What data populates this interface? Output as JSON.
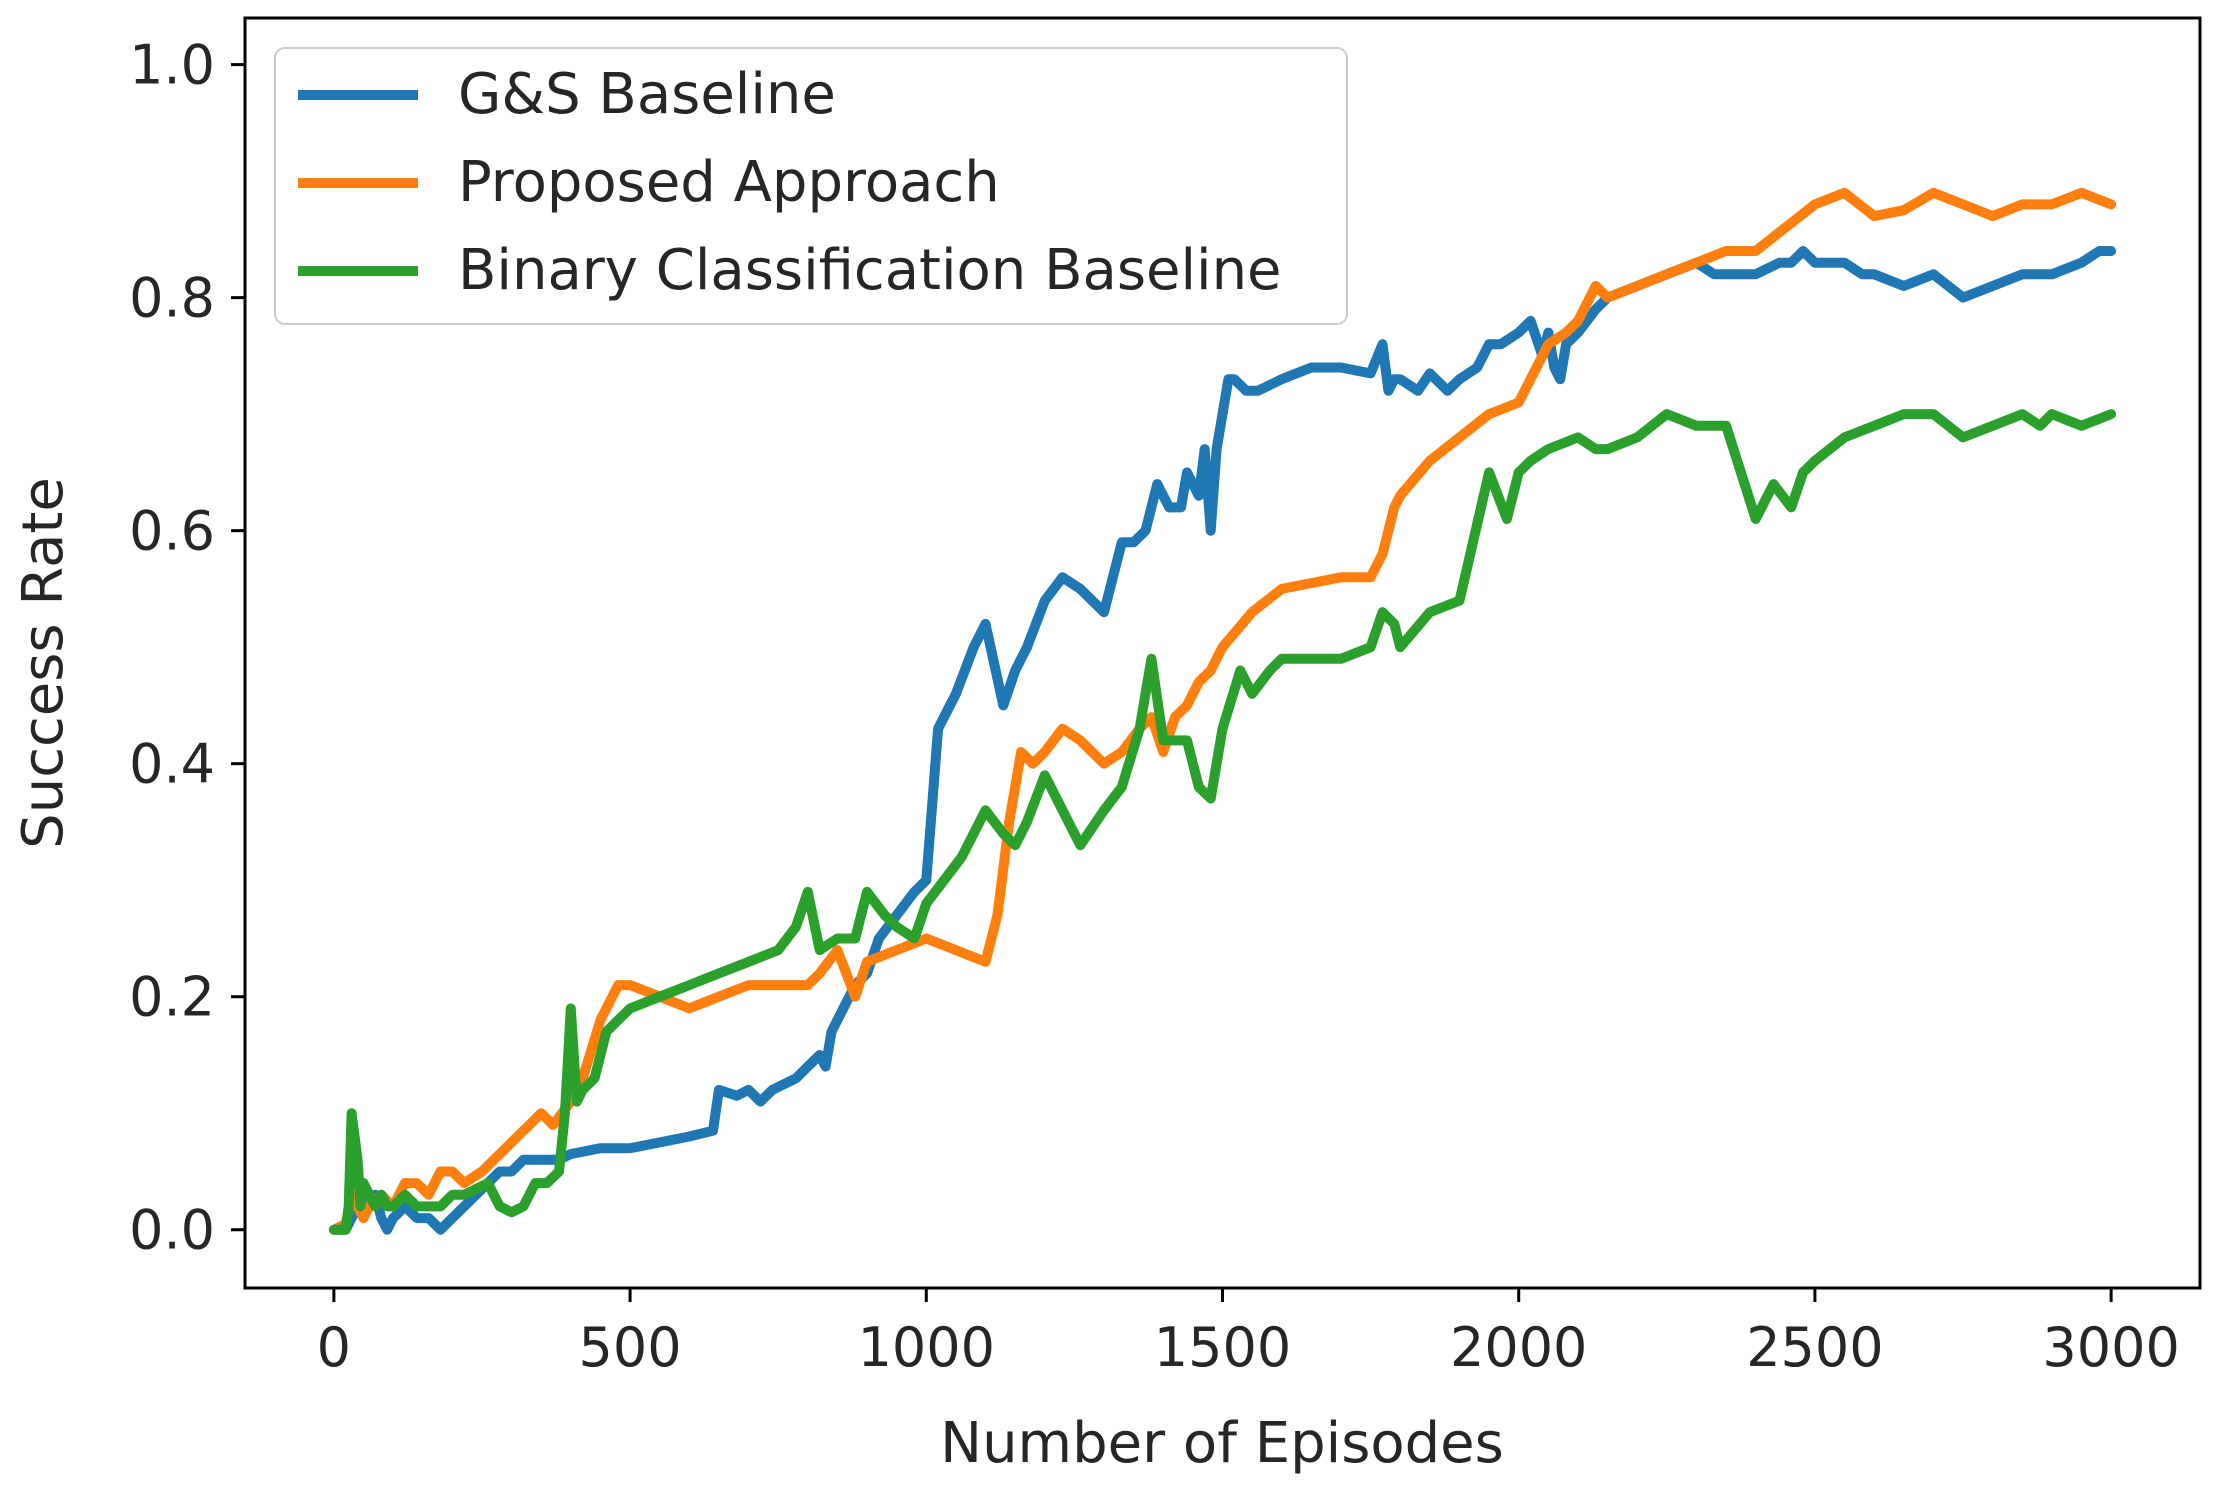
{
  "chart_data": {
    "type": "line",
    "title": "",
    "xlabel": "Number of Episodes",
    "ylabel": "Success Rate",
    "xlim": [
      -150,
      3150
    ],
    "ylim": [
      -0.05,
      1.04
    ],
    "xticks": [
      0,
      500,
      1000,
      1500,
      2000,
      2500,
      3000
    ],
    "xtick_labels": [
      "0",
      "500",
      "1000",
      "1500",
      "2000",
      "2500",
      "3000"
    ],
    "yticks": [
      0.0,
      0.2,
      0.4,
      0.6,
      0.8,
      1.0
    ],
    "ytick_labels": [
      "0.0",
      "0.2",
      "0.4",
      "0.6",
      "0.8",
      "1.0"
    ],
    "grid": false,
    "legend_position": "upper-left",
    "series": [
      {
        "name": "G&S Baseline",
        "color": "#1f77b4",
        "x": [
          0,
          20,
          30,
          40,
          50,
          60,
          70,
          80,
          90,
          100,
          120,
          140,
          160,
          180,
          200,
          220,
          240,
          260,
          280,
          300,
          320,
          340,
          360,
          380,
          400,
          450,
          500,
          550,
          600,
          640,
          650,
          680,
          700,
          720,
          740,
          760,
          780,
          800,
          820,
          830,
          840,
          860,
          880,
          900,
          920,
          950,
          980,
          1000,
          1020,
          1050,
          1080,
          1100,
          1130,
          1150,
          1170,
          1200,
          1230,
          1260,
          1300,
          1330,
          1350,
          1370,
          1390,
          1410,
          1430,
          1440,
          1460,
          1470,
          1480,
          1490,
          1500,
          1510,
          1520,
          1540,
          1560,
          1580,
          1600,
          1650,
          1700,
          1750,
          1770,
          1780,
          1790,
          1800,
          1830,
          1850,
          1880,
          1900,
          1930,
          1950,
          1970,
          2000,
          2020,
          2040,
          2050,
          2060,
          2070,
          2080,
          2100,
          2130,
          2150,
          2200,
          2250,
          2300,
          2330,
          2350,
          2400,
          2440,
          2460,
          2480,
          2500,
          2550,
          2580,
          2600,
          2650,
          2700,
          2750,
          2800,
          2850,
          2900,
          2950,
          2980,
          3000
        ],
        "y": [
          0.0,
          0.0,
          0.01,
          0.02,
          0.03,
          0.02,
          0.03,
          0.01,
          0.0,
          0.01,
          0.02,
          0.01,
          0.01,
          0.0,
          0.01,
          0.02,
          0.03,
          0.04,
          0.05,
          0.05,
          0.06,
          0.06,
          0.06,
          0.06,
          0.065,
          0.07,
          0.07,
          0.075,
          0.08,
          0.085,
          0.12,
          0.115,
          0.12,
          0.11,
          0.12,
          0.125,
          0.13,
          0.14,
          0.15,
          0.14,
          0.17,
          0.19,
          0.21,
          0.22,
          0.25,
          0.27,
          0.29,
          0.3,
          0.43,
          0.46,
          0.5,
          0.52,
          0.45,
          0.48,
          0.5,
          0.54,
          0.56,
          0.55,
          0.53,
          0.59,
          0.59,
          0.6,
          0.64,
          0.62,
          0.62,
          0.65,
          0.63,
          0.67,
          0.6,
          0.67,
          0.7,
          0.73,
          0.73,
          0.72,
          0.72,
          0.725,
          0.73,
          0.74,
          0.74,
          0.735,
          0.76,
          0.72,
          0.73,
          0.73,
          0.72,
          0.735,
          0.72,
          0.73,
          0.74,
          0.76,
          0.76,
          0.77,
          0.78,
          0.75,
          0.77,
          0.74,
          0.73,
          0.76,
          0.77,
          0.79,
          0.8,
          0.81,
          0.82,
          0.83,
          0.82,
          0.82,
          0.82,
          0.83,
          0.83,
          0.84,
          0.83,
          0.83,
          0.82,
          0.82,
          0.81,
          0.82,
          0.8,
          0.81,
          0.82,
          0.82,
          0.83,
          0.84,
          0.84
        ]
      },
      {
        "name": "Proposed Approach",
        "color": "#ff7f0e",
        "x": [
          0,
          20,
          30,
          40,
          50,
          60,
          80,
          100,
          120,
          140,
          160,
          180,
          200,
          220,
          250,
          270,
          290,
          310,
          330,
          350,
          370,
          400,
          420,
          450,
          480,
          500,
          550,
          600,
          650,
          700,
          750,
          800,
          820,
          850,
          880,
          900,
          950,
          1000,
          1050,
          1100,
          1120,
          1140,
          1160,
          1180,
          1200,
          1230,
          1260,
          1300,
          1330,
          1360,
          1380,
          1400,
          1420,
          1440,
          1460,
          1480,
          1500,
          1550,
          1600,
          1650,
          1700,
          1750,
          1770,
          1790,
          1800,
          1850,
          1900,
          1950,
          2000,
          2030,
          2050,
          2080,
          2100,
          2130,
          2150,
          2200,
          2250,
          2300,
          2350,
          2400,
          2450,
          2500,
          2550,
          2600,
          2650,
          2700,
          2750,
          2800,
          2850,
          2900,
          2950,
          3000
        ],
        "y": [
          0.0,
          0.005,
          0.03,
          0.02,
          0.01,
          0.02,
          0.03,
          0.02,
          0.04,
          0.04,
          0.03,
          0.05,
          0.05,
          0.04,
          0.05,
          0.06,
          0.07,
          0.08,
          0.09,
          0.1,
          0.09,
          0.11,
          0.13,
          0.18,
          0.21,
          0.21,
          0.2,
          0.19,
          0.2,
          0.21,
          0.21,
          0.21,
          0.22,
          0.24,
          0.2,
          0.23,
          0.24,
          0.25,
          0.24,
          0.23,
          0.27,
          0.35,
          0.41,
          0.4,
          0.41,
          0.43,
          0.42,
          0.4,
          0.41,
          0.43,
          0.44,
          0.41,
          0.44,
          0.45,
          0.47,
          0.48,
          0.5,
          0.53,
          0.55,
          0.555,
          0.56,
          0.56,
          0.58,
          0.62,
          0.63,
          0.66,
          0.68,
          0.7,
          0.71,
          0.74,
          0.76,
          0.77,
          0.78,
          0.81,
          0.8,
          0.81,
          0.82,
          0.83,
          0.84,
          0.84,
          0.86,
          0.88,
          0.89,
          0.87,
          0.875,
          0.89,
          0.88,
          0.87,
          0.88,
          0.88,
          0.89,
          0.88
        ]
      },
      {
        "name": "Binary Classification Baseline",
        "color": "#2ca02c",
        "x": [
          0,
          20,
          25,
          30,
          35,
          40,
          45,
          50,
          60,
          70,
          80,
          90,
          100,
          120,
          140,
          160,
          180,
          200,
          220,
          260,
          280,
          300,
          320,
          340,
          360,
          380,
          390,
          400,
          410,
          420,
          440,
          460,
          480,
          500,
          550,
          600,
          650,
          700,
          750,
          780,
          800,
          820,
          850,
          880,
          900,
          930,
          950,
          980,
          1000,
          1030,
          1060,
          1100,
          1130,
          1150,
          1170,
          1200,
          1230,
          1260,
          1300,
          1330,
          1360,
          1380,
          1400,
          1420,
          1440,
          1460,
          1480,
          1500,
          1530,
          1550,
          1580,
          1600,
          1650,
          1700,
          1750,
          1770,
          1790,
          1800,
          1850,
          1900,
          1950,
          1980,
          2000,
          2020,
          2050,
          2100,
          2130,
          2150,
          2200,
          2250,
          2300,
          2350,
          2400,
          2430,
          2460,
          2480,
          2500,
          2550,
          2600,
          2650,
          2700,
          2750,
          2800,
          2850,
          2880,
          2900,
          2950,
          3000
        ],
        "y": [
          0.0,
          0.0,
          0.02,
          0.1,
          0.08,
          0.06,
          0.02,
          0.04,
          0.03,
          0.02,
          0.03,
          0.02,
          0.02,
          0.03,
          0.02,
          0.02,
          0.02,
          0.03,
          0.03,
          0.04,
          0.02,
          0.015,
          0.02,
          0.04,
          0.04,
          0.05,
          0.1,
          0.19,
          0.11,
          0.12,
          0.13,
          0.17,
          0.18,
          0.19,
          0.2,
          0.21,
          0.22,
          0.23,
          0.24,
          0.26,
          0.29,
          0.24,
          0.25,
          0.25,
          0.29,
          0.27,
          0.26,
          0.25,
          0.28,
          0.3,
          0.32,
          0.36,
          0.34,
          0.33,
          0.35,
          0.39,
          0.36,
          0.33,
          0.36,
          0.38,
          0.43,
          0.49,
          0.42,
          0.42,
          0.42,
          0.38,
          0.37,
          0.43,
          0.48,
          0.46,
          0.48,
          0.49,
          0.49,
          0.49,
          0.5,
          0.53,
          0.52,
          0.5,
          0.53,
          0.54,
          0.65,
          0.61,
          0.65,
          0.66,
          0.67,
          0.68,
          0.67,
          0.67,
          0.68,
          0.7,
          0.69,
          0.69,
          0.61,
          0.64,
          0.62,
          0.65,
          0.66,
          0.68,
          0.69,
          0.7,
          0.7,
          0.68,
          0.69,
          0.7,
          0.69,
          0.7,
          0.69,
          0.7
        ]
      }
    ]
  }
}
